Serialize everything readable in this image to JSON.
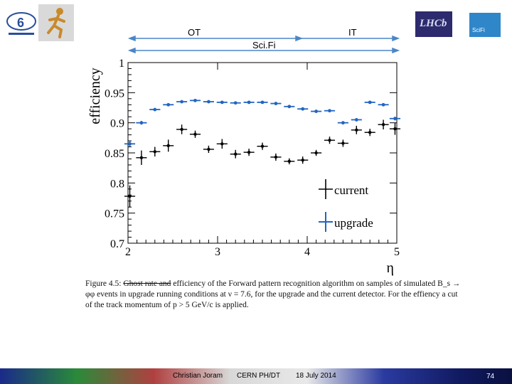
{
  "header": {
    "regions": {
      "ot": "OT",
      "it": "IT",
      "scifi": "Sci.Fi"
    }
  },
  "logos": {
    "left_logo": "cern-60-logo",
    "runner": "runner-icon",
    "lhcb": "lhcb-logo",
    "scifi": "scifi-logo",
    "scifi_text": "SciFi",
    "lhcb_text": "LHCb"
  },
  "chart_data": {
    "type": "scatter",
    "xlabel": "η",
    "ylabel": "efficiency",
    "xlim": [
      2,
      5
    ],
    "ylim": [
      0.7,
      1.0
    ],
    "xticks": [
      2,
      3,
      4,
      5
    ],
    "yticks": [
      0.7,
      0.75,
      0.8,
      0.85,
      0.9,
      0.95,
      1
    ],
    "ytick_labels": [
      "0.7",
      "0.75",
      "0.8",
      "0.85",
      "0.9",
      "0.95",
      "1"
    ],
    "legend_position": "bottom-right",
    "series": [
      {
        "name": "current",
        "color": "#000000",
        "x": [
          2.02,
          2.15,
          2.3,
          2.45,
          2.6,
          2.75,
          2.9,
          3.05,
          3.2,
          3.35,
          3.5,
          3.65,
          3.8,
          3.95,
          4.1,
          4.25,
          4.4,
          4.55,
          4.7,
          4.85,
          4.98
        ],
        "y": [
          0.778,
          0.842,
          0.852,
          0.862,
          0.889,
          0.881,
          0.856,
          0.865,
          0.848,
          0.851,
          0.861,
          0.843,
          0.836,
          0.838,
          0.85,
          0.871,
          0.866,
          0.888,
          0.884,
          0.897,
          0.89
        ],
        "yerr": [
          0.018,
          0.012,
          0.008,
          0.01,
          0.008,
          0.006,
          0.006,
          0.008,
          0.007,
          0.006,
          0.006,
          0.006,
          0.005,
          0.006,
          0.005,
          0.006,
          0.006,
          0.007,
          0.006,
          0.008,
          0.01
        ]
      },
      {
        "name": "upgrade",
        "color": "#2166c2",
        "x": [
          2.02,
          2.15,
          2.3,
          2.45,
          2.6,
          2.75,
          2.9,
          3.05,
          3.2,
          3.35,
          3.5,
          3.65,
          3.8,
          3.95,
          4.1,
          4.25,
          4.4,
          4.55,
          4.7,
          4.85,
          4.98
        ],
        "y": [
          0.865,
          0.9,
          0.922,
          0.93,
          0.935,
          0.937,
          0.935,
          0.934,
          0.933,
          0.934,
          0.934,
          0.932,
          0.927,
          0.923,
          0.919,
          0.92,
          0.9,
          0.905,
          0.934,
          0.93,
          0.907
        ],
        "yerr": [
          0.005,
          0.003,
          0.002,
          0.002,
          0.002,
          0.002,
          0.002,
          0.002,
          0.002,
          0.002,
          0.002,
          0.002,
          0.002,
          0.002,
          0.002,
          0.002,
          0.002,
          0.002,
          0.002,
          0.002,
          0.003
        ]
      }
    ]
  },
  "caption": {
    "prefix": "Figure 4.5: ",
    "struck": "Ghost rate and",
    "text": " efficiency of the Forward pattern recognition algorithm on samples of simulated B_s → φφ events in upgrade running conditions at ν = 7.6, for the upgrade and the current detector. For the effiency a cut of the track momentum of p > 5 GeV/c is applied."
  },
  "footer": {
    "author": "Christian Joram",
    "org": "CERN PH/DT",
    "date": "18 July 2014",
    "page": "74"
  }
}
